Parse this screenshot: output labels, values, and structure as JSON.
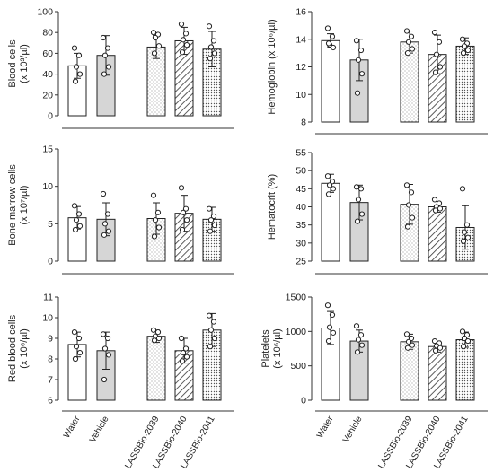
{
  "chart_data": [
    {
      "type": "bar",
      "ylabel_lines": [
        "Blood cells",
        "(x 10³/µl)"
      ],
      "ylim": [
        0,
        100
      ],
      "yticks": [
        "0",
        "20",
        "40",
        "60",
        "80",
        "100"
      ],
      "categories": [
        "Water",
        "Vehicle",
        "LASSBio-2039",
        "LASSBio-2040",
        "LASSBio-2041"
      ],
      "means": [
        48,
        58,
        66,
        72,
        64
      ],
      "sd": [
        12,
        19,
        11,
        13,
        17
      ],
      "points": [
        [
          65,
          58,
          47,
          40,
          33
        ],
        [
          75,
          65,
          58,
          47,
          40
        ],
        [
          80,
          78,
          75,
          67,
          60
        ],
        [
          88,
          79,
          73,
          68,
          61
        ],
        [
          86,
          72,
          66,
          60,
          55
        ]
      ]
    },
    {
      "type": "bar",
      "ylabel_lines": [
        "Hemoglobin (x 10⁶/µl)"
      ],
      "ylim": [
        8,
        16
      ],
      "yticks": [
        "8",
        "10",
        "12",
        "14",
        "16"
      ],
      "categories": [
        "Water",
        "Vehicle",
        "LASSBio-2039",
        "LASSBio-2040",
        "LASSBio-2041"
      ],
      "means": [
        13.9,
        12.5,
        13.8,
        12.9,
        13.5
      ],
      "sd": [
        0.5,
        1.5,
        0.8,
        1.4,
        0.6
      ],
      "points": [
        [
          14.8,
          14.2,
          13.6,
          13.4,
          13.7
        ],
        [
          13.9,
          13.2,
          12.5,
          11.5,
          10.1
        ],
        [
          14.6,
          14.2,
          13.8,
          13.3,
          13.0
        ],
        [
          14.5,
          13.8,
          12.9,
          12.0,
          11.6
        ],
        [
          14.0,
          13.7,
          13.5,
          13.2,
          13.0
        ]
      ]
    },
    {
      "type": "bar",
      "ylabel_lines": [
        "Bone marrow cells",
        "(x 10⁷/µl)"
      ],
      "ylim": [
        0,
        15
      ],
      "yticks": [
        "0",
        "5",
        "10",
        "15"
      ],
      "categories": [
        "Water",
        "Vehicle",
        "LASSBio-2039",
        "LASSBio-2040",
        "LASSBio-2041"
      ],
      "means": [
        5.8,
        5.6,
        5.7,
        6.4,
        5.6
      ],
      "sd": [
        1.5,
        2.2,
        2.1,
        2.4,
        1.6
      ],
      "points": [
        [
          7.4,
          6.3,
          5.5,
          4.7,
          4.2
        ],
        [
          9.0,
          6.3,
          5.0,
          4.0,
          3.5
        ],
        [
          8.8,
          6.5,
          5.5,
          4.5,
          3.3
        ],
        [
          9.8,
          7.0,
          6.5,
          5.5,
          4.2
        ],
        [
          7.0,
          6.0,
          5.5,
          4.8,
          4.0
        ]
      ]
    },
    {
      "type": "bar",
      "ylabel_lines": [
        "Hematocrit (%)"
      ],
      "ylim": [
        25,
        55
      ],
      "yticks": [
        "25",
        "30",
        "35",
        "40",
        "45",
        "50",
        "55"
      ],
      "categories": [
        "Water",
        "Vehicle",
        "LASSBio-2039",
        "LASSBio-2040",
        "LASSBio-2041"
      ],
      "means": [
        46.5,
        41.2,
        40.7,
        40.0,
        34.3
      ],
      "sd": [
        2.5,
        4.8,
        5.5,
        1.5,
        6.0
      ],
      "points": [
        [
          48.5,
          47.0,
          46.0,
          45.0,
          43.5
        ],
        [
          45.5,
          45.0,
          42.0,
          38.0,
          36.0
        ],
        [
          46.0,
          44.0,
          40.5,
          37.0,
          34.5
        ],
        [
          42.0,
          41.0,
          40.0,
          39.5,
          39.0
        ],
        [
          45.0,
          35.0,
          33.0,
          31.5,
          30.5
        ]
      ]
    },
    {
      "type": "bar",
      "ylabel_lines": [
        "Red blood cells",
        "(x 10⁶/µl)"
      ],
      "ylim": [
        6,
        11
      ],
      "yticks": [
        "6",
        "7",
        "8",
        "9",
        "10",
        "11"
      ],
      "categories": [
        "Water",
        "Vehicle",
        "LASSBio-2039",
        "LASSBio-2040",
        "LASSBio-2041"
      ],
      "means": [
        8.7,
        8.4,
        9.1,
        8.4,
        9.4
      ],
      "sd": [
        0.6,
        0.9,
        0.3,
        0.6,
        0.8
      ],
      "points": [
        [
          9.3,
          9.0,
          8.6,
          8.3,
          8.0
        ],
        [
          9.2,
          9.0,
          8.5,
          8.2,
          7.0
        ],
        [
          9.4,
          9.3,
          9.1,
          9.0,
          8.9
        ],
        [
          9.0,
          8.5,
          8.3,
          8.1,
          7.9
        ],
        [
          10.1,
          9.8,
          9.4,
          9.0,
          8.6
        ]
      ]
    },
    {
      "type": "bar",
      "ylabel_lines": [
        "Platelets",
        "(x 10⁶/µl)"
      ],
      "ylim": [
        0,
        1500
      ],
      "yticks": [
        "0",
        "500",
        "1000",
        "1500"
      ],
      "categories": [
        "Water",
        "Vehicle",
        "LASSBio-2039",
        "LASSBio-2040",
        "LASSBio-2041"
      ],
      "means": [
        1050,
        860,
        850,
        780,
        880
      ],
      "sd": [
        240,
        160,
        110,
        80,
        110
      ],
      "points": [
        [
          1380,
          1240,
          1060,
          980,
          860
        ],
        [
          1080,
          950,
          880,
          800,
          700
        ],
        [
          960,
          900,
          850,
          800,
          760
        ],
        [
          860,
          830,
          790,
          760,
          720
        ],
        [
          1000,
          950,
          900,
          860,
          780
        ]
      ]
    }
  ],
  "bar_fills": [
    "white",
    "gray",
    "dots",
    "hatch",
    "dense-dots"
  ]
}
